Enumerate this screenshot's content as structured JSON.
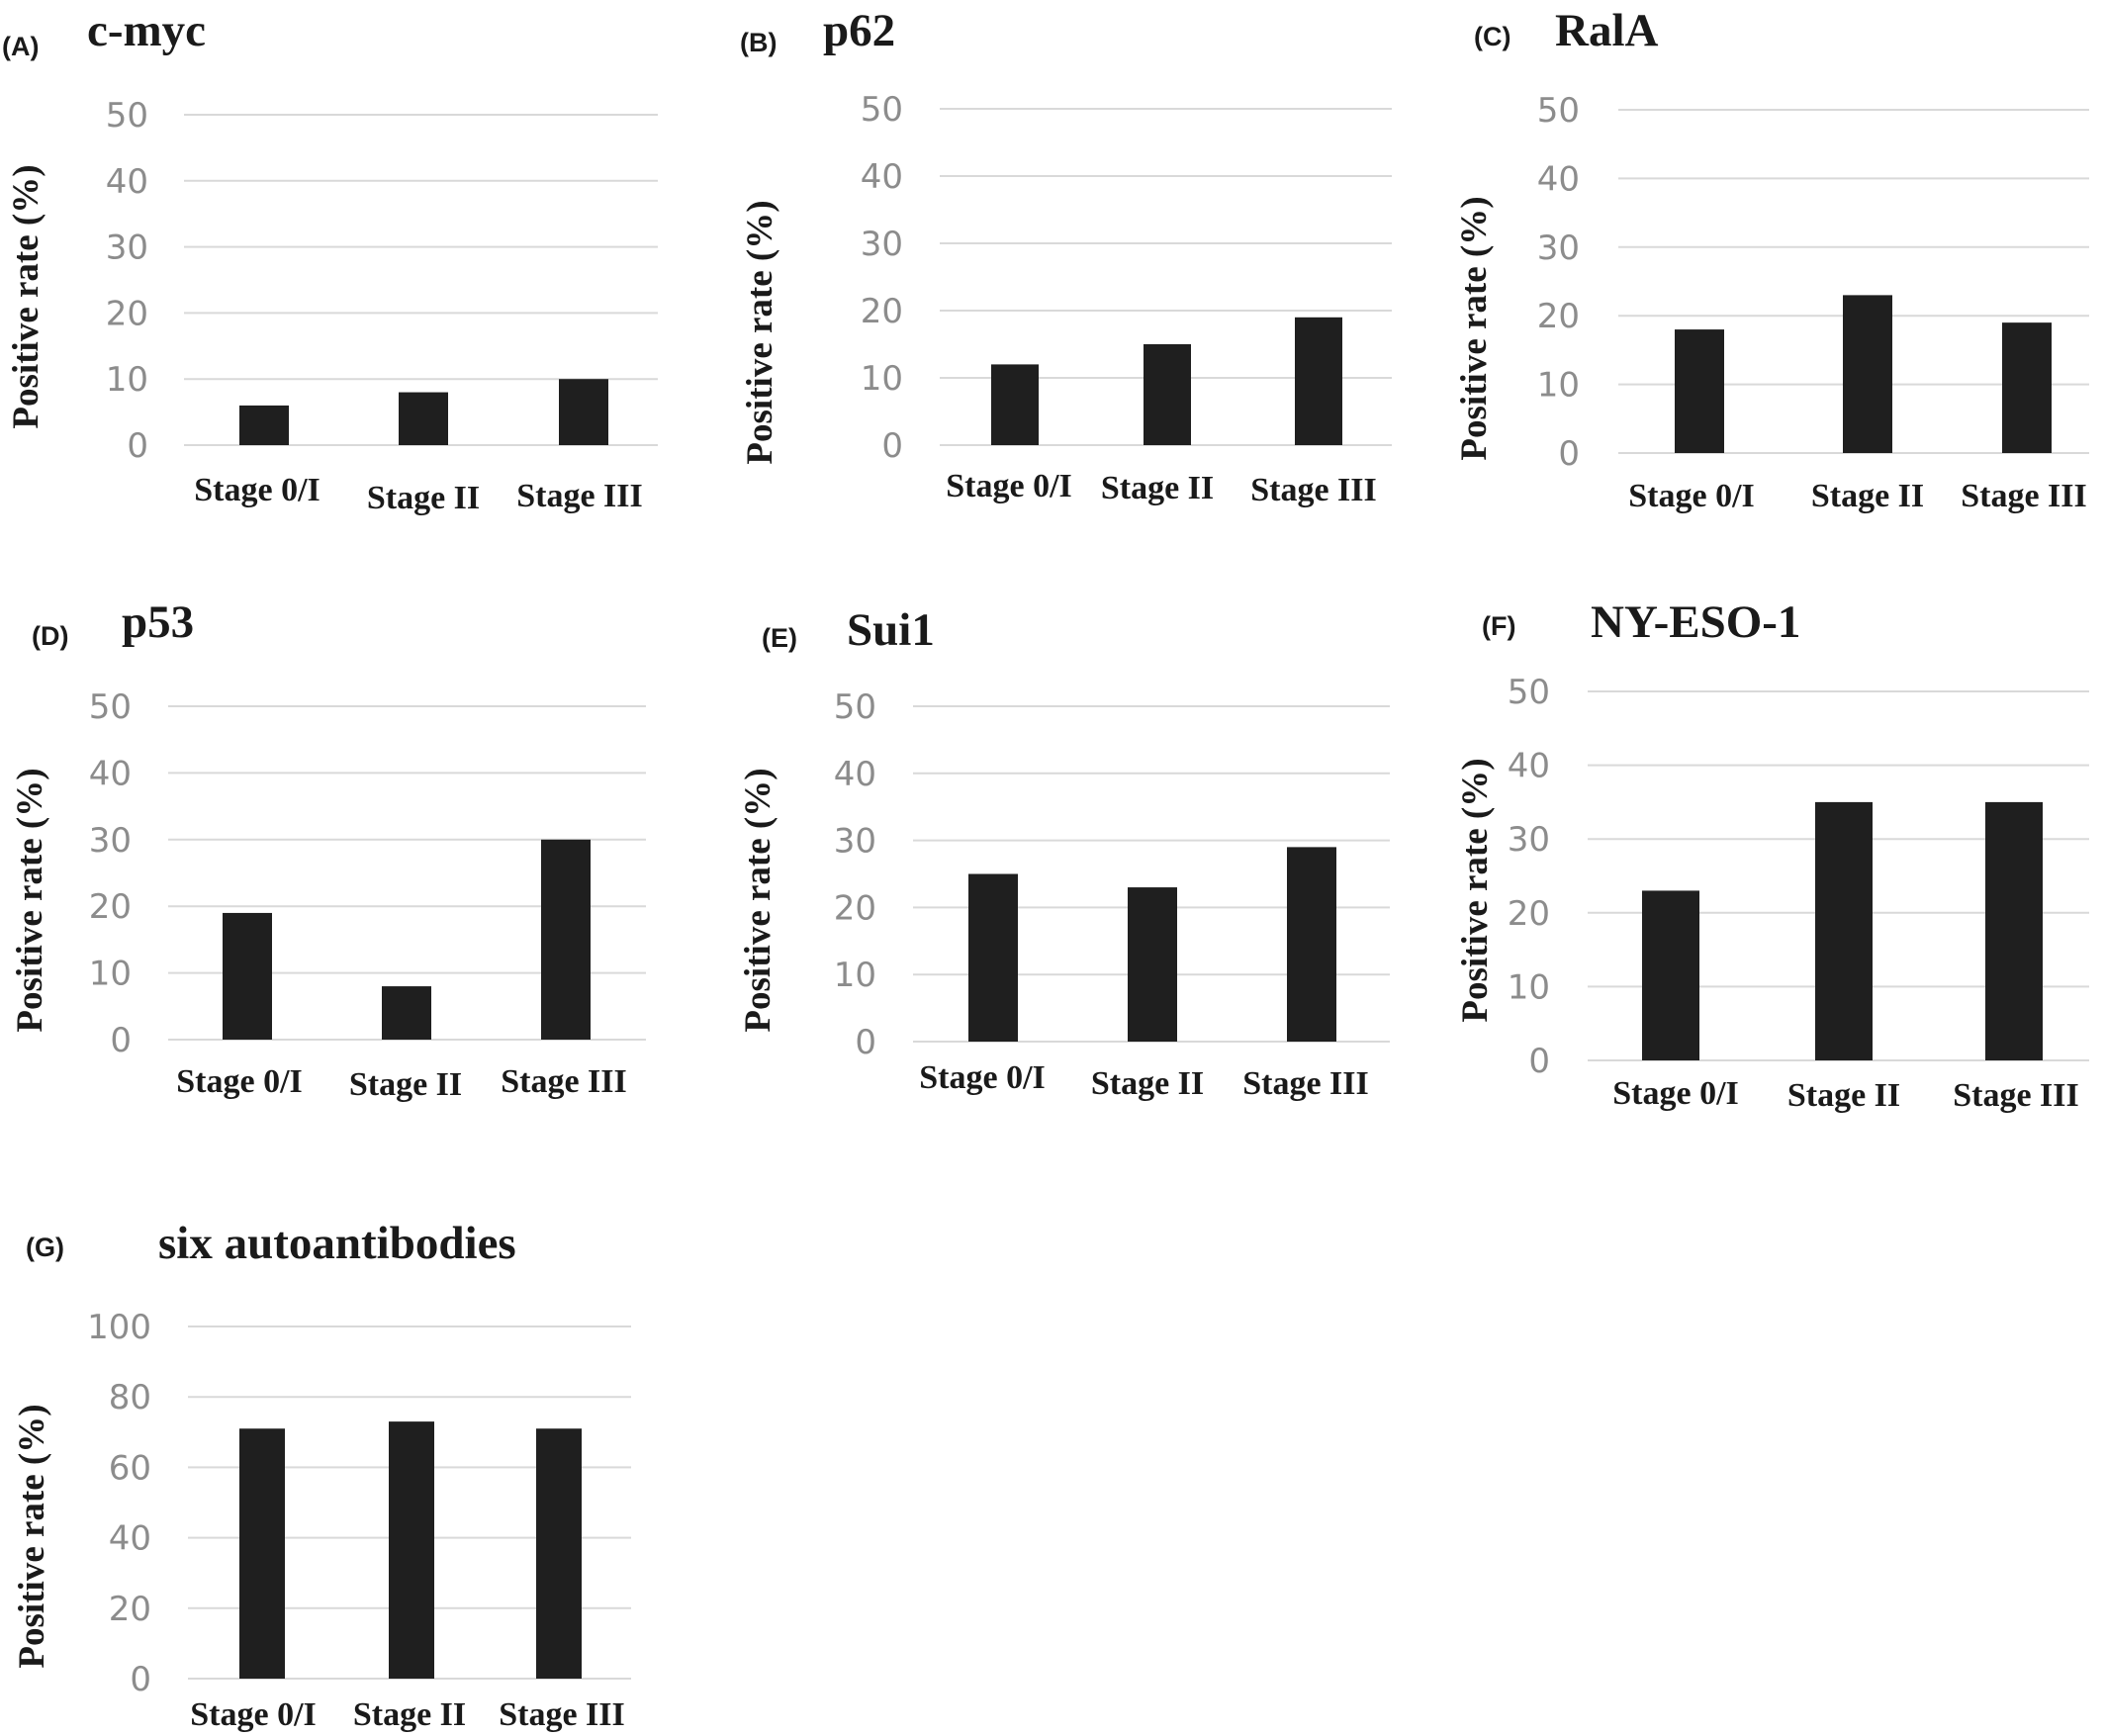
{
  "chart_data": [
    {
      "panel": "(A)",
      "title": "c-myc",
      "type": "bar",
      "categories": [
        "Stage 0/I",
        "Stage II",
        "Stage III"
      ],
      "values": [
        6,
        8,
        10
      ],
      "ylabel": "Positive rate (%)",
      "ylim": [
        0,
        50
      ],
      "yticks": [
        0,
        10,
        20,
        30,
        40,
        50
      ],
      "grid": true
    },
    {
      "panel": "(B)",
      "title": "p62",
      "type": "bar",
      "categories": [
        "Stage 0/I",
        "Stage II",
        "Stage III"
      ],
      "values": [
        12,
        15,
        19
      ],
      "ylabel": "Positive rate (%)",
      "ylim": [
        0,
        50
      ],
      "yticks": [
        0,
        10,
        20,
        30,
        40,
        50
      ],
      "grid": true
    },
    {
      "panel": "(C)",
      "title": "RalA",
      "type": "bar",
      "categories": [
        "Stage 0/I",
        "Stage II",
        "Stage III"
      ],
      "values": [
        18,
        23,
        19
      ],
      "ylabel": "Positive rate (%)",
      "ylim": [
        0,
        50
      ],
      "yticks": [
        0,
        10,
        20,
        30,
        40,
        50
      ],
      "grid": true
    },
    {
      "panel": "(D)",
      "title": "p53",
      "type": "bar",
      "categories": [
        "Stage 0/I",
        "Stage II",
        "Stage III"
      ],
      "values": [
        19,
        8,
        30
      ],
      "ylabel": "Positive rate (%)",
      "ylim": [
        0,
        50
      ],
      "yticks": [
        0,
        10,
        20,
        30,
        40,
        50
      ],
      "grid": true
    },
    {
      "panel": "(E)",
      "title": "Sui1",
      "type": "bar",
      "categories": [
        "Stage 0/I",
        "Stage II",
        "Stage III"
      ],
      "values": [
        25,
        23,
        29
      ],
      "ylabel": "Positive rate (%)",
      "ylim": [
        0,
        50
      ],
      "yticks": [
        0,
        10,
        20,
        30,
        40,
        50
      ],
      "grid": true
    },
    {
      "panel": "(F)",
      "title": "NY-ESO-1",
      "type": "bar",
      "categories": [
        "Stage 0/I",
        "Stage II",
        "Stage III"
      ],
      "values": [
        23,
        35,
        35
      ],
      "ylabel": "Positive rate (%)",
      "ylim": [
        0,
        50
      ],
      "yticks": [
        0,
        10,
        20,
        30,
        40,
        50
      ],
      "grid": true
    },
    {
      "panel": "(G)",
      "title": "six autoantibodies",
      "type": "bar",
      "categories": [
        "Stage 0/I",
        "Stage II",
        "Stage III"
      ],
      "values": [
        71,
        73,
        71
      ],
      "ylabel": "Positive rate (%)",
      "ylim": [
        0,
        100
      ],
      "yticks": [
        0,
        20,
        40,
        60,
        80,
        100
      ],
      "grid": true
    }
  ]
}
